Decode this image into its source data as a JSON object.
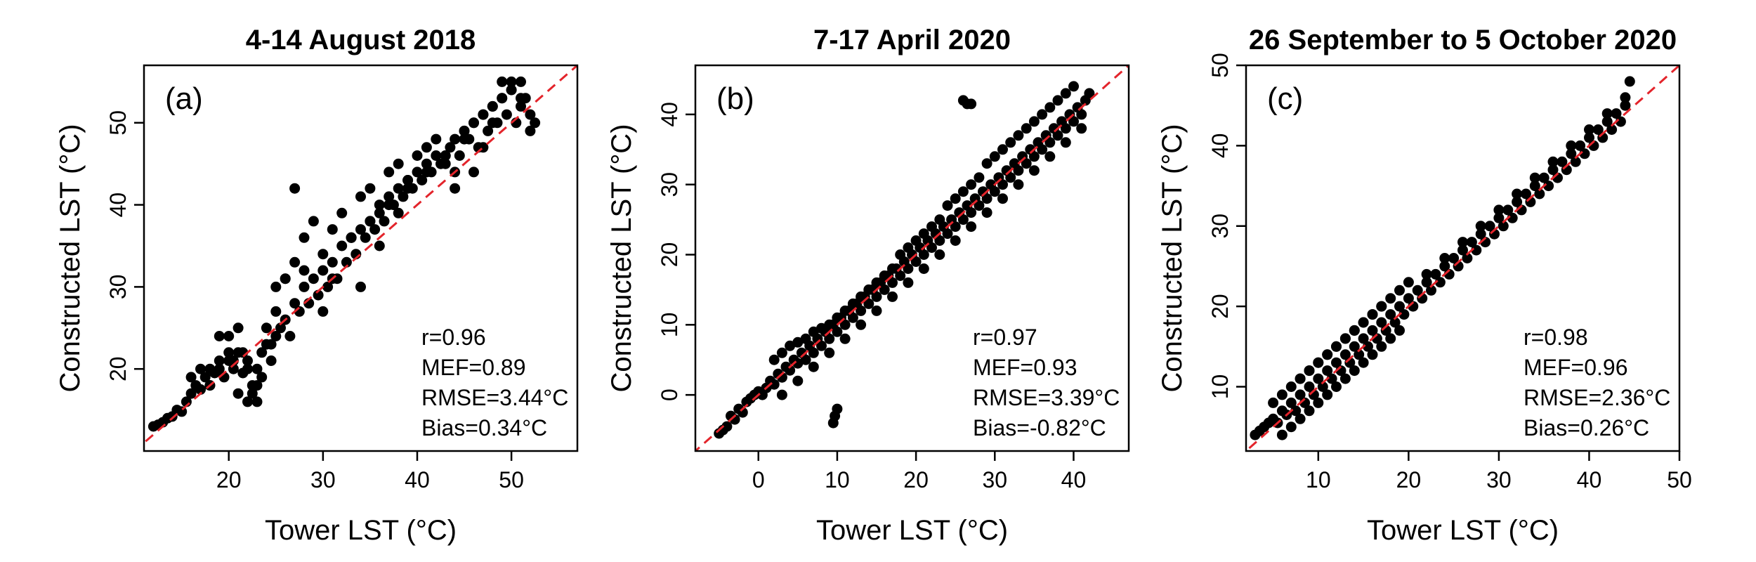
{
  "chart_data": [
    {
      "type": "scatter",
      "title": "4-14 August 2018",
      "panel_label": "(a)",
      "xlabel": "Tower LST (°C)",
      "ylabel": "Constructed LST (°C)",
      "xlim": [
        11,
        57
      ],
      "ylim": [
        10,
        57
      ],
      "xticks": [
        20,
        30,
        40,
        50
      ],
      "yticks": [
        20,
        30,
        40,
        50
      ],
      "reference_line": "1:1",
      "reference_color": "#e3242b",
      "point_color": "#000000",
      "stats": [
        "r=0.96",
        "MEF=0.89",
        "RMSE=3.44°C",
        "Bias=0.34°C"
      ],
      "points": {
        "x": [
          12,
          12.5,
          13,
          13.5,
          14,
          14.5,
          15,
          15.5,
          16,
          16.5,
          17,
          17.5,
          18,
          18.5,
          19,
          19.5,
          20,
          20.5,
          21,
          21.5,
          22,
          22.5,
          23,
          23.5,
          24,
          24.5,
          25,
          25.5,
          26,
          26.5,
          27,
          27.5,
          28,
          28.5,
          29,
          29.5,
          30,
          30.5,
          31,
          31.5,
          32,
          32.5,
          33,
          33.5,
          34,
          34.5,
          35,
          35.5,
          36,
          36.5,
          37,
          37.5,
          38,
          38.5,
          39,
          39.5,
          40,
          40.5,
          41,
          41.5,
          42,
          42.5,
          43,
          43.5,
          44,
          44.5,
          45,
          45.5,
          46,
          46.5,
          47,
          47.5,
          48,
          48.5,
          49,
          49.5,
          50,
          50.5,
          51,
          51.5,
          52,
          52.5,
          16,
          17,
          18,
          19,
          20,
          21,
          22,
          23,
          24,
          25,
          26,
          27,
          28,
          29,
          30,
          31,
          32,
          33,
          34,
          35,
          36,
          37,
          38,
          39,
          40,
          41,
          42,
          43,
          44,
          45,
          46,
          47,
          48,
          49,
          50,
          51,
          22,
          22.5,
          23,
          21.5,
          20.5,
          23.5,
          24.5,
          27,
          25,
          20,
          19,
          18,
          21,
          26,
          28,
          30,
          33,
          35,
          37,
          39,
          41,
          43,
          45,
          47,
          49,
          51,
          38,
          44,
          46,
          48,
          50,
          52,
          34,
          36,
          31
        ],
        "y": [
          13,
          13.2,
          13.5,
          14,
          14.2,
          15,
          14.8,
          16,
          17,
          18,
          17.5,
          19,
          18,
          19.5,
          20,
          19,
          21,
          20,
          22,
          19.5,
          21,
          18,
          20,
          22,
          23,
          21,
          24,
          25,
          26,
          24,
          28,
          27,
          30,
          28,
          31,
          29,
          32,
          30,
          33,
          31,
          35,
          33,
          36,
          34,
          37,
          36,
          38,
          37,
          39,
          38,
          41,
          40,
          42,
          41,
          43,
          42,
          44,
          43,
          45,
          44,
          46,
          45,
          46,
          47,
          48,
          46,
          49,
          48,
          50,
          47,
          51,
          49,
          52,
          50,
          53,
          51,
          54,
          50,
          52,
          53,
          51,
          50,
          19,
          20,
          18,
          21,
          24,
          17,
          16,
          18,
          25,
          27,
          31,
          33,
          36,
          38,
          34,
          37,
          39,
          36,
          41,
          42,
          40,
          44,
          45,
          43,
          46,
          47,
          48,
          45,
          44,
          49,
          50,
          47,
          52,
          55,
          55,
          53,
          20,
          17,
          16,
          22,
          21,
          19,
          23,
          42,
          30,
          22,
          24,
          20,
          25,
          31,
          32,
          27,
          36,
          38,
          40,
          42,
          44,
          46,
          48,
          51,
          53,
          55,
          39,
          42,
          44,
          50,
          54,
          49,
          30,
          35,
          31
        ]
      }
    },
    {
      "type": "scatter",
      "title": "7-17 April 2020",
      "panel_label": "(b)",
      "xlabel": "Tower LST (°C)",
      "ylabel": "Constructed LST (°C)",
      "xlim": [
        -8,
        47
      ],
      "ylim": [
        -8,
        47
      ],
      "xticks": [
        0,
        10,
        20,
        30,
        40
      ],
      "yticks": [
        0,
        10,
        20,
        30,
        40
      ],
      "reference_line": "1:1",
      "reference_color": "#e3242b",
      "point_color": "#000000",
      "stats": [
        "r=0.97",
        "MEF=0.93",
        "RMSE=3.39°C",
        "Bias=-0.82°C"
      ],
      "points": {
        "x": [
          -5,
          -4.5,
          -4,
          -3.5,
          -3,
          -2.5,
          -2,
          -1.5,
          -1,
          -0.5,
          0,
          0.5,
          1,
          1.5,
          2,
          2.5,
          3,
          3.5,
          4,
          4.5,
          5,
          5.5,
          6,
          6.5,
          7,
          7.5,
          8,
          8.5,
          9,
          9.5,
          10,
          10.5,
          11,
          11.5,
          12,
          12.5,
          13,
          13.5,
          14,
          14.5,
          15,
          15.5,
          16,
          16.5,
          17,
          17.5,
          18,
          18.5,
          19,
          19.5,
          20,
          20.5,
          21,
          21.5,
          22,
          22.5,
          23,
          23.5,
          24,
          24.5,
          25,
          25.5,
          26,
          26.5,
          27,
          27.5,
          28,
          28.5,
          29,
          29.5,
          30,
          30.5,
          31,
          31.5,
          32,
          32.5,
          33,
          33.5,
          34,
          34.5,
          35,
          35.5,
          36,
          36.5,
          37,
          37.5,
          38,
          38.5,
          39,
          39.5,
          40,
          40.5,
          41,
          41.5,
          42,
          2,
          3,
          4,
          5,
          6,
          7,
          8,
          9,
          10,
          11,
          12,
          13,
          14,
          15,
          16,
          17,
          18,
          19,
          20,
          21,
          22,
          23,
          24,
          25,
          26,
          27,
          28,
          29,
          30,
          31,
          32,
          33,
          34,
          35,
          36,
          37,
          38,
          39,
          40,
          9.5,
          9.7,
          10,
          26,
          26.5,
          27,
          3,
          5,
          7,
          9,
          11,
          13,
          15,
          17,
          19,
          21,
          23,
          25,
          27,
          29,
          31,
          33,
          35,
          37,
          39,
          41
        ],
        "y": [
          -5.5,
          -5,
          -4.5,
          -3,
          -3.5,
          -2,
          -2.5,
          -1,
          -0.5,
          0,
          0.5,
          0,
          1,
          2,
          1.5,
          3,
          2.5,
          4,
          3.5,
          5,
          4.5,
          6,
          5,
          7,
          6,
          8,
          7,
          9,
          8,
          10,
          9,
          11,
          10,
          12,
          11,
          13,
          12,
          14,
          13,
          15,
          14,
          16,
          15,
          17,
          16,
          18,
          17,
          19,
          18,
          20,
          19,
          21,
          20,
          22,
          21,
          23,
          22,
          24,
          23,
          25,
          24,
          26,
          25,
          27,
          26,
          28,
          27,
          29,
          28,
          30,
          29,
          31,
          30,
          32,
          31,
          33,
          32,
          34,
          33,
          35,
          34,
          36,
          35,
          37,
          36,
          38,
          37,
          39,
          38,
          40,
          39,
          41,
          40,
          42,
          43,
          5,
          6,
          7,
          7.5,
          8,
          9,
          9.5,
          10,
          11,
          12,
          13,
          14,
          15,
          16,
          17,
          18,
          20,
          21,
          22,
          23,
          24,
          25,
          27,
          28,
          29,
          30,
          31,
          33,
          34,
          35,
          36,
          37,
          38,
          39,
          40,
          41,
          42,
          43,
          44,
          -4,
          -3,
          -2,
          42,
          41.5,
          41.5,
          0,
          2,
          4,
          6,
          8,
          10,
          12,
          14,
          16,
          18,
          20,
          22,
          24,
          26,
          28,
          30,
          32,
          34,
          36,
          38
        ]
      }
    },
    {
      "type": "scatter",
      "title": "26 September to 5 October 2020",
      "panel_label": "(c)",
      "xlabel": "Tower LST (°C)",
      "ylabel": "Constructed LST (°C)",
      "xlim": [
        2,
        50
      ],
      "ylim": [
        2,
        50
      ],
      "xticks": [
        10,
        20,
        30,
        40,
        50
      ],
      "yticks": [
        10,
        20,
        30,
        40,
        50
      ],
      "reference_line": "1:1",
      "reference_color": "#e3242b",
      "point_color": "#000000",
      "stats": [
        "r=0.98",
        "MEF=0.96",
        "RMSE=2.36°C",
        "Bias=0.26°C"
      ],
      "points": {
        "x": [
          3,
          3.5,
          4,
          4.5,
          5,
          5.5,
          6,
          6.5,
          7,
          7.5,
          8,
          8.5,
          9,
          9.5,
          10,
          10.5,
          11,
          11.5,
          12,
          12.5,
          13,
          13.5,
          14,
          14.5,
          15,
          15.5,
          16,
          16.5,
          17,
          17.5,
          18,
          18.5,
          19,
          19.5,
          20,
          20.5,
          21,
          21.5,
          22,
          22.5,
          23,
          23.5,
          24,
          24.5,
          25,
          25.5,
          26,
          26.5,
          27,
          27.5,
          28,
          28.5,
          29,
          29.5,
          30,
          30.5,
          31,
          31.5,
          32,
          32.5,
          33,
          33.5,
          34,
          34.5,
          35,
          35.5,
          36,
          36.5,
          37,
          37.5,
          38,
          38.5,
          39,
          39.5,
          40,
          40.5,
          41,
          41.5,
          42,
          42.5,
          43,
          43.5,
          44,
          44.5,
          5,
          6,
          7,
          8,
          9,
          10,
          11,
          12,
          13,
          14,
          15,
          16,
          17,
          18,
          19,
          20,
          6,
          7,
          8,
          9,
          10,
          11,
          12,
          13,
          14,
          15,
          16,
          17,
          18,
          19,
          8,
          9,
          10,
          11,
          12,
          13,
          14,
          15,
          16,
          17,
          22,
          24,
          26,
          28,
          30,
          32,
          34,
          36,
          38,
          40,
          42,
          44
        ],
        "y": [
          4,
          4.5,
          5,
          5.5,
          6,
          5.5,
          7,
          6.5,
          8,
          7,
          9,
          8,
          10,
          9,
          11,
          10,
          12,
          11,
          13,
          12,
          14,
          13,
          15,
          14,
          16,
          15,
          17,
          16,
          18,
          17,
          19,
          18,
          20,
          19,
          21,
          20,
          22,
          21,
          23,
          22,
          24,
          23,
          25,
          24,
          26,
          25,
          27,
          26,
          28,
          27,
          29,
          28,
          30,
          29,
          31,
          30,
          32,
          31,
          33,
          32,
          34,
          33,
          35,
          34,
          36,
          35,
          37,
          36,
          38,
          37,
          39,
          38,
          40,
          39,
          41,
          40,
          42,
          41,
          43,
          42,
          44,
          43,
          45,
          48,
          8,
          9,
          10,
          11,
          12,
          13,
          14,
          15,
          16,
          17,
          18,
          19,
          20,
          21,
          22,
          23,
          4,
          5,
          6,
          7,
          8,
          9,
          10,
          11,
          12,
          13,
          14,
          15,
          16,
          17,
          11,
          12,
          13,
          14,
          15,
          16,
          17,
          18,
          19,
          20,
          24,
          26,
          28,
          30,
          32,
          34,
          36,
          38,
          40,
          42,
          44,
          46
        ]
      }
    }
  ]
}
